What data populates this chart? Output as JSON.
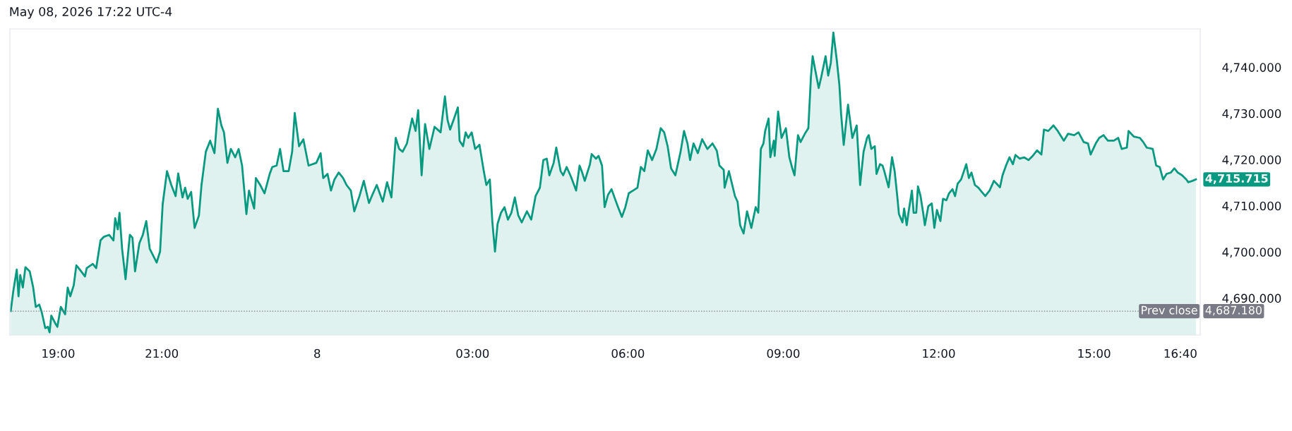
{
  "chart_data": {
    "type": "area",
    "title": "May 08, 2026 17:22 UTC-4",
    "x": [
      "2026-05-07T18:05",
      "2026-05-07T18:08",
      "2026-05-07T18:12",
      "2026-05-07T18:14",
      "2026-05-07T18:16",
      "2026-05-07T18:19",
      "2026-05-07T18:22",
      "2026-05-07T18:27",
      "2026-05-07T18:31",
      "2026-05-07T18:34",
      "2026-05-07T18:38",
      "2026-05-07T18:41",
      "2026-05-07T18:45",
      "2026-05-07T18:48",
      "2026-05-07T18:50",
      "2026-05-07T18:52",
      "2026-05-07T18:57",
      "2026-05-07T18:59",
      "2026-05-07T19:03",
      "2026-05-07T19:08",
      "2026-05-07T19:11",
      "2026-05-07T19:14",
      "2026-05-07T19:18",
      "2026-05-07T19:21",
      "2026-05-07T19:25",
      "2026-05-07T19:31",
      "2026-05-07T19:33",
      "2026-05-07T19:40",
      "2026-05-07T19:44",
      "2026-05-07T19:49",
      "2026-05-07T19:53",
      "2026-05-07T19:59",
      "2026-05-07T20:04",
      "2026-05-07T20:06",
      "2026-05-07T20:09",
      "2026-05-07T20:11",
      "2026-05-07T20:14",
      "2026-05-07T20:18",
      "2026-05-07T20:23",
      "2026-05-07T20:26",
      "2026-05-07T20:29",
      "2026-05-07T20:34",
      "2026-05-07T20:38",
      "2026-05-07T20:42",
      "2026-05-07T20:46",
      "2026-05-07T20:54",
      "2026-05-07T20:58",
      "2026-05-07T21:01",
      "2026-05-07T21:06",
      "2026-05-07T21:11",
      "2026-05-07T21:16",
      "2026-05-07T21:19",
      "2026-05-07T21:24",
      "2026-05-07T21:27",
      "2026-05-07T21:30",
      "2026-05-07T21:34",
      "2026-05-07T21:38",
      "2026-05-07T21:43",
      "2026-05-07T21:46",
      "2026-05-07T21:51",
      "2026-05-07T21:56",
      "2026-05-07T22:01",
      "2026-05-07T22:05",
      "2026-05-07T22:09",
      "2026-05-07T22:12",
      "2026-05-07T22:16",
      "2026-05-07T22:20",
      "2026-05-07T22:25",
      "2026-05-07T22:29",
      "2026-05-07T22:33",
      "2026-05-07T22:38",
      "2026-05-07T22:41",
      "2026-05-07T22:47",
      "2026-05-07T22:49",
      "2026-05-07T22:54",
      "2026-05-07T22:59",
      "2026-05-07T23:05",
      "2026-05-07T23:08",
      "2026-05-07T23:13",
      "2026-05-07T23:17",
      "2026-05-07T23:21",
      "2026-05-07T23:27",
      "2026-05-07T23:31",
      "2026-05-07T23:34",
      "2026-05-07T23:39",
      "2026-05-07T23:44",
      "2026-05-07T23:50",
      "2026-05-07T23:59",
      "2026-05-08T00:04",
      "2026-05-08T00:07",
      "2026-05-08T00:12",
      "2026-05-08T00:16",
      "2026-05-08T00:20",
      "2026-05-08T00:25",
      "2026-05-08T00:30",
      "2026-05-08T00:34",
      "2026-05-08T00:39",
      "2026-05-08T00:43",
      "2026-05-08T00:49",
      "2026-05-08T00:54",
      "2026-05-08T01:00",
      "2026-05-08T01:04",
      "2026-05-08T01:09",
      "2026-05-08T01:16",
      "2026-05-08T01:21",
      "2026-05-08T01:26",
      "2026-05-08T01:31",
      "2026-05-08T01:35",
      "2026-05-08T01:39",
      "2026-05-08T01:44",
      "2026-05-08T01:50",
      "2026-05-08T01:54",
      "2026-05-08T01:57",
      "2026-05-08T02:01",
      "2026-05-08T02:05",
      "2026-05-08T02:10",
      "2026-05-08T02:16",
      "2026-05-08T02:23",
      "2026-05-08T02:28",
      "2026-05-08T02:31",
      "2026-05-08T02:34",
      "2026-05-08T02:38",
      "2026-05-08T02:43",
      "2026-05-08T02:45",
      "2026-05-08T02:49",
      "2026-05-08T02:52",
      "2026-05-08T02:55",
      "2026-05-08T02:59",
      "2026-05-08T03:03",
      "2026-05-08T03:08",
      "2026-05-08T03:13",
      "2026-05-08T03:16",
      "2026-05-08T03:20",
      "2026-05-08T03:23",
      "2026-05-08T03:26",
      "2026-05-08T03:29",
      "2026-05-08T03:33",
      "2026-05-08T03:37",
      "2026-05-08T03:41",
      "2026-05-08T03:45",
      "2026-05-08T03:49",
      "2026-05-08T03:53",
      "2026-05-08T03:57",
      "2026-05-08T04:03",
      "2026-05-08T04:08",
      "2026-05-08T04:13",
      "2026-05-08T04:18",
      "2026-05-08T04:22",
      "2026-05-08T04:26",
      "2026-05-08T04:29",
      "2026-05-08T04:34",
      "2026-05-08T04:37",
      "2026-05-08T04:42",
      "2026-05-08T04:45",
      "2026-05-08T04:49",
      "2026-05-08T04:54",
      "2026-05-08T05:00",
      "2026-05-08T05:04",
      "2026-05-08T05:07",
      "2026-05-08T05:10",
      "2026-05-08T05:16",
      "2026-05-08T05:18",
      "2026-05-08T05:23",
      "2026-05-08T05:26",
      "2026-05-08T05:30",
      "2026-05-08T05:33",
      "2026-05-08T05:37",
      "2026-05-08T05:41",
      "2026-05-08T05:45",
      "2026-05-08T05:48",
      "2026-05-08T05:53",
      "2026-05-08T05:57",
      "2026-05-08T06:01",
      "2026-05-08T06:06",
      "2026-05-08T06:11",
      "2026-05-08T06:15",
      "2026-05-08T06:19",
      "2026-05-08T06:23",
      "2026-05-08T06:28",
      "2026-05-08T06:33",
      "2026-05-08T06:38",
      "2026-05-08T06:42",
      "2026-05-08T06:46",
      "2026-05-08T06:50",
      "2026-05-08T06:55",
      "2026-05-08T07:01",
      "2026-05-08T07:05",
      "2026-05-08T07:09",
      "2026-05-08T07:12",
      "2026-05-08T07:16",
      "2026-05-08T07:21",
      "2026-05-08T07:26",
      "2026-05-08T07:32",
      "2026-05-08T07:38",
      "2026-05-08T07:43",
      "2026-05-08T07:46",
      "2026-05-08T07:51",
      "2026-05-08T07:52",
      "2026-05-08T07:57",
      "2026-05-08T08:04",
      "2026-05-08T08:07",
      "2026-05-08T08:10",
      "2026-05-08T08:14",
      "2026-05-08T08:18",
      "2026-05-08T08:23",
      "2026-05-08T08:28",
      "2026-05-08T08:31",
      "2026-05-08T08:34",
      "2026-05-08T08:37",
      "2026-05-08T08:39",
      "2026-05-08T08:43",
      "2026-05-08T08:45",
      "2026-05-08T08:49",
      "2026-05-08T08:50",
      "2026-05-08T08:54",
      "2026-05-08T08:58",
      "2026-05-08T09:03",
      "2026-05-08T09:07",
      "2026-05-08T09:10",
      "2026-05-08T09:13",
      "2026-05-08T09:17",
      "2026-05-08T09:20",
      "2026-05-08T09:25",
      "2026-05-08T09:29",
      "2026-05-08T09:32",
      "2026-05-08T09:34",
      "2026-05-08T09:37",
      "2026-05-08T09:41",
      "2026-05-08T09:44",
      "2026-05-08T09:49",
      "2026-05-08T09:52",
      "2026-05-08T09:55",
      "2026-05-08T09:58",
      "2026-05-08T10:02",
      "2026-05-08T10:05",
      "2026-05-08T10:07",
      "2026-05-08T10:10",
      "2026-05-08T10:15",
      "2026-05-08T10:20",
      "2026-05-08T10:25",
      "2026-05-08T10:29",
      "2026-05-08T10:33",
      "2026-05-08T10:37",
      "2026-05-08T10:39",
      "2026-05-08T10:42",
      "2026-05-08T10:46",
      "2026-05-08T10:48",
      "2026-05-08T10:52",
      "2026-05-08T10:55",
      "2026-05-08T10:57",
      "2026-05-08T11:02",
      "2026-05-08T11:06",
      "2026-05-08T11:09",
      "2026-05-08T11:12",
      "2026-05-08T11:14",
      "2026-05-08T11:18",
      "2026-05-08T11:20",
      "2026-05-08T11:23",
      "2026-05-08T11:25",
      "2026-05-08T11:29",
      "2026-05-08T11:31",
      "2026-05-08T11:34",
      "2026-05-08T11:36",
      "2026-05-08T11:39",
      "2026-05-08T11:42",
      "2026-05-08T11:44",
      "2026-05-08T11:48",
      "2026-05-08T11:52",
      "2026-05-08T11:55",
      "2026-05-08T11:58",
      "2026-05-08T12:02",
      "2026-05-08T12:05",
      "2026-05-08T12:09",
      "2026-05-08T12:12",
      "2026-05-08T12:16",
      "2026-05-08T12:19",
      "2026-05-08T12:22",
      "2026-05-08T12:26",
      "2026-05-08T12:32",
      "2026-05-08T12:35",
      "2026-05-08T12:38",
      "2026-05-08T12:42",
      "2026-05-08T12:46",
      "2026-05-08T12:50",
      "2026-05-08T12:54",
      "2026-05-08T12:59",
      "2026-05-08T13:04",
      "2026-05-08T13:11",
      "2026-05-08T13:14",
      "2026-05-08T13:18",
      "2026-05-08T13:22",
      "2026-05-08T13:26",
      "2026-05-08T13:29",
      "2026-05-08T13:34",
      "2026-05-08T13:39",
      "2026-05-08T13:44",
      "2026-05-08T13:49",
      "2026-05-08T13:54",
      "2026-05-08T13:59",
      "2026-05-08T14:02",
      "2026-05-08T14:07",
      "2026-05-08T14:13",
      "2026-05-08T14:18",
      "2026-05-08T14:25",
      "2026-05-08T14:30",
      "2026-05-08T14:37",
      "2026-05-08T14:42",
      "2026-05-08T14:48",
      "2026-05-08T14:53",
      "2026-05-08T14:56",
      "2026-05-08T15:02",
      "2026-05-08T15:06",
      "2026-05-08T15:11",
      "2026-05-08T15:16",
      "2026-05-08T15:23",
      "2026-05-08T15:28",
      "2026-05-08T15:32",
      "2026-05-08T15:38",
      "2026-05-08T15:40",
      "2026-05-08T15:46",
      "2026-05-08T15:53",
      "2026-05-08T15:57",
      "2026-05-08T16:01",
      "2026-05-08T16:08",
      "2026-05-08T16:12",
      "2026-05-08T16:16",
      "2026-05-08T16:20",
      "2026-05-08T16:24",
      "2026-05-08T16:29",
      "2026-05-08T16:33",
      "2026-05-08T16:37",
      "2026-05-08T16:42",
      "2026-05-08T16:47",
      "2026-05-08T16:49",
      "2026-05-08T16:54",
      "2026-05-08T16:58"
    ],
    "series": [
      {
        "color": "#089981",
        "values": [
          4687.2,
          4691.6,
          4696.2,
          4690.4,
          4695.0,
          4692.3,
          4696.7,
          4695.8,
          4692.3,
          4688.1,
          4688.6,
          4686.9,
          4683.5,
          4683.8,
          4682.6,
          4686.2,
          4684.4,
          4683.8,
          4688.1,
          4686.5,
          4692.3,
          4690.4,
          4692.8,
          4697.1,
          4696.2,
          4694.7,
          4696.5,
          4697.4,
          4696.5,
          4702.5,
          4703.3,
          4703.7,
          4702.5,
          4707.3,
          4704.9,
          4708.5,
          4700.7,
          4694.1,
          4703.7,
          4703.1,
          4695.8,
          4701.9,
          4703.7,
          4706.7,
          4700.7,
          4697.7,
          4700.1,
          4710.3,
          4717.5,
          4714.5,
          4712.1,
          4717.0,
          4711.8,
          4713.9,
          4711.5,
          4713.0,
          4705.2,
          4707.9,
          4714.5,
          4721.7,
          4724.1,
          4721.4,
          4731.0,
          4727.4,
          4725.9,
          4719.3,
          4722.3,
          4720.5,
          4722.3,
          4718.7,
          4708.2,
          4713.3,
          4709.4,
          4716.0,
          4714.5,
          4712.7,
          4716.9,
          4718.4,
          4718.7,
          4722.3,
          4717.5,
          4717.5,
          4721.7,
          4730.1,
          4722.9,
          4724.4,
          4718.7,
          4719.3,
          4721.4,
          4716.0,
          4716.9,
          4713.3,
          4715.7,
          4717.2,
          4716.0,
          4714.5,
          4713.3,
          4708.8,
          4712.1,
          4715.4,
          4710.6,
          4712.4,
          4714.5,
          4710.9,
          4715.1,
          4711.8,
          4724.7,
          4722.3,
          4721.7,
          4723.5,
          4728.9,
          4726.2,
          4730.7,
          4716.6,
          4727.7,
          4722.3,
          4727.1,
          4725.9,
          4733.7,
          4728.6,
          4726.5,
          4728.6,
          4731.3,
          4724.1,
          4722.9,
          4725.9,
          4724.7,
          4725.9,
          4722.3,
          4723.2,
          4717.5,
          4714.5,
          4715.7,
          4706.4,
          4700.1,
          4706.1,
          4708.5,
          4709.7,
          4707.0,
          4708.5,
          4711.8,
          4707.9,
          4706.4,
          4708.8,
          4707.0,
          4712.1,
          4713.9,
          4719.9,
          4720.2,
          4716.6,
          4719.3,
          4722.6,
          4717.5,
          4716.6,
          4718.4,
          4716.3,
          4713.3,
          4718.7,
          4717.2,
          4715.4,
          4719.0,
          4721.2,
          4720.2,
          4720.8,
          4718.7,
          4709.7,
          4712.4,
          4713.6,
          4711.5,
          4710.0,
          4707.6,
          4709.7,
          4712.7,
          4713.3,
          4713.9,
          4718.4,
          4717.5,
          4722.0,
          4719.9,
          4722.3,
          4726.8,
          4725.9,
          4722.9,
          4718.1,
          4716.6,
          4721.7,
          4726.2,
          4723.5,
          4719.9,
          4723.5,
          4721.4,
          4724.4,
          4722.3,
          4723.5,
          4721.9,
          4718.7,
          4717.8,
          4713.9,
          4717.5,
          4712.1,
          4710.9,
          4705.8,
          4704.0,
          4708.8,
          4705.2,
          4709.7,
          4708.5,
          4722.3,
          4723.5,
          4726.2,
          4728.9,
          4720.5,
          4724.1,
          4720.8,
          4730.4,
          4724.7,
          4726.8,
          4720.5,
          4718.4,
          4716.6,
          4725.3,
          4723.8,
          4725.6,
          4726.8,
          4737.9,
          4742.4,
          4739.4,
          4735.5,
          4737.9,
          4742.4,
          4738.2,
          4740.9,
          4747.5,
          4741.5,
          4736.1,
          4729.8,
          4723.2,
          4731.9,
          4724.7,
          4727.4,
          4714.5,
          4721.7,
          4724.7,
          4725.3,
          4722.3,
          4722.9,
          4716.9,
          4719.0,
          4718.7,
          4717.5,
          4714.0,
          4720.5,
          4717.5,
          4712.1,
          4708.2,
          4706.4,
          4709.4,
          4705.8,
          4708.5,
          4713.3,
          4708.5,
          4708.5,
          4714.2,
          4712.1,
          4708.5,
          4705.8,
          4709.9,
          4710.5,
          4705.2,
          4709.1,
          4706.7,
          4711.5,
          4711.2,
          4712.7,
          4713.6,
          4712.1,
          4714.8,
          4715.7,
          4719.0,
          4716.0,
          4717.2,
          4714.5,
          4713.9,
          4713.0,
          4712.1,
          4713.3,
          4715.4,
          4714.0,
          4716.6,
          4718.7,
          4720.5,
          4719.0,
          4721.0,
          4720.2,
          4720.5,
          4719.9,
          4720.8,
          4722.0,
          4721.1,
          4726.5,
          4726.2,
          4727.4,
          4726.2,
          4724.1,
          4725.6,
          4725.3,
          4725.9,
          4723.8,
          4723.5,
          4721.1,
          4723.5,
          4724.7,
          4725.3,
          4724.1,
          4724.1,
          4724.7,
          4722.3,
          4722.6,
          4726.2,
          4725.0,
          4724.7,
          4723.8,
          4722.6,
          4722.3,
          4718.7,
          4718.4,
          4715.7,
          4716.9,
          4717.2,
          4718.1,
          4717.2,
          4716.6,
          4715.7,
          4715.1,
          4715.4,
          4715.715
        ]
      }
    ],
    "xlim": [
      "2026-05-07T18:04",
      "2026-05-08T17:03"
    ],
    "xticks": [
      {
        "value": "2026-05-07T19:00",
        "label": "19:00"
      },
      {
        "value": "2026-05-07T21:00",
        "label": "21:00"
      },
      {
        "value": "2026-05-08T00:00",
        "label": "8"
      },
      {
        "value": "2026-05-08T03:00",
        "label": "03:00"
      },
      {
        "value": "2026-05-08T06:00",
        "label": "06:00"
      },
      {
        "value": "2026-05-08T09:00",
        "label": "09:00"
      },
      {
        "value": "2026-05-08T12:00",
        "label": "12:00"
      },
      {
        "value": "2026-05-08T15:00",
        "label": "15:00"
      },
      {
        "value": "2026-05-08T16:40",
        "label": "16:40"
      }
    ],
    "ylim": [
      4682.0,
      4748.3
    ],
    "yticks": [
      {
        "value": 4690,
        "label": "4,690.000"
      },
      {
        "value": 4700,
        "label": "4,700.000"
      },
      {
        "value": 4710,
        "label": "4,710.000"
      },
      {
        "value": 4720,
        "label": "4,720.000"
      },
      {
        "value": 4730,
        "label": "4,730.000"
      },
      {
        "value": 4740,
        "label": "4,740.000"
      }
    ],
    "ref_lines": [
      {
        "axis": "y",
        "value": 4687.18,
        "label": "Prev close",
        "color": "#787b86",
        "line_style": "dotted"
      }
    ],
    "annotations": [
      {
        "text": "4,715.715",
        "x": "2026-05-08T16:58",
        "y": 4715.715
      },
      {
        "text": "4,687.180",
        "x": "2026-05-08T16:58",
        "y": 4687.18
      }
    ],
    "grid": false,
    "legend": false
  }
}
